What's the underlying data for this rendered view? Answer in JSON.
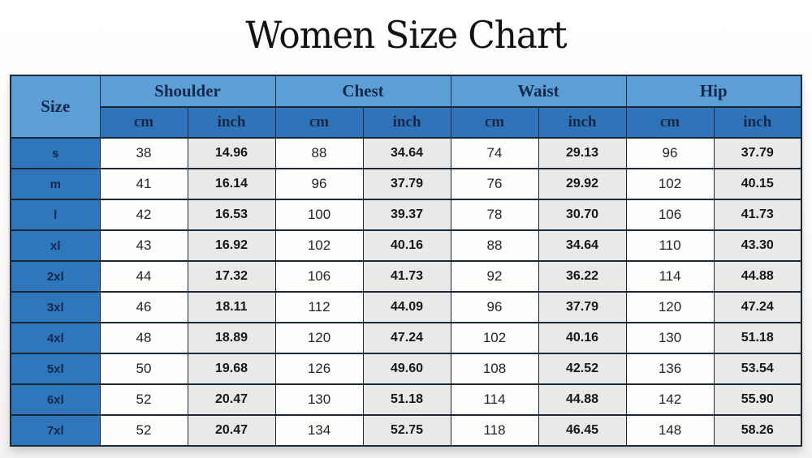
{
  "title": "Women Size Chart",
  "colors": {
    "header_light_blue": "#5b9fd6",
    "header_dark_blue": "#2f74b8",
    "size_cell_blue": "#2f77bc",
    "inch_cell_gray": "#e9e9e9",
    "header_text_navy": "#13294b"
  },
  "table": {
    "size_header": "Size",
    "groups": [
      {
        "label": "Shoulder"
      },
      {
        "label": "Chest"
      },
      {
        "label": "Waist"
      },
      {
        "label": "Hip"
      }
    ],
    "units": [
      "cm",
      "inch"
    ],
    "rows": [
      {
        "size": "s",
        "values": [
          "38",
          "14.96",
          "88",
          "34.64",
          "74",
          "29.13",
          "96",
          "37.79"
        ]
      },
      {
        "size": "m",
        "values": [
          "41",
          "16.14",
          "96",
          "37.79",
          "76",
          "29.92",
          "102",
          "40.15"
        ]
      },
      {
        "size": "l",
        "values": [
          "42",
          "16.53",
          "100",
          "39.37",
          "78",
          "30.70",
          "106",
          "41.73"
        ]
      },
      {
        "size": "xl",
        "values": [
          "43",
          "16.92",
          "102",
          "40.16",
          "88",
          "34.64",
          "110",
          "43.30"
        ]
      },
      {
        "size": "2xl",
        "values": [
          "44",
          "17.32",
          "106",
          "41.73",
          "92",
          "36.22",
          "114",
          "44.88"
        ]
      },
      {
        "size": "3xl",
        "values": [
          "46",
          "18.11",
          "112",
          "44.09",
          "96",
          "37.79",
          "120",
          "47.24"
        ]
      },
      {
        "size": "4xl",
        "values": [
          "48",
          "18.89",
          "120",
          "47.24",
          "102",
          "40.16",
          "130",
          "51.18"
        ]
      },
      {
        "size": "5xl",
        "values": [
          "50",
          "19.68",
          "126",
          "49.60",
          "108",
          "42.52",
          "136",
          "53.54"
        ]
      },
      {
        "size": "6xl",
        "values": [
          "52",
          "20.47",
          "130",
          "51.18",
          "114",
          "44.88",
          "142",
          "55.90"
        ]
      },
      {
        "size": "7xl",
        "values": [
          "52",
          "20.47",
          "134",
          "52.75",
          "118",
          "46.45",
          "148",
          "58.26"
        ]
      }
    ]
  },
  "chart_data": {
    "type": "table",
    "title": "Women Size Chart",
    "columns": [
      "Size",
      "Shoulder cm",
      "Shoulder inch",
      "Chest cm",
      "Chest inch",
      "Waist cm",
      "Waist inch",
      "Hip cm",
      "Hip inch"
    ],
    "rows": [
      [
        "s",
        38,
        14.96,
        88,
        34.64,
        74,
        29.13,
        96,
        37.79
      ],
      [
        "m",
        41,
        16.14,
        96,
        37.79,
        76,
        29.92,
        102,
        40.15
      ],
      [
        "l",
        42,
        16.53,
        100,
        39.37,
        78,
        30.7,
        106,
        41.73
      ],
      [
        "xl",
        43,
        16.92,
        102,
        40.16,
        88,
        34.64,
        110,
        43.3
      ],
      [
        "2xl",
        44,
        17.32,
        106,
        41.73,
        92,
        36.22,
        114,
        44.88
      ],
      [
        "3xl",
        46,
        18.11,
        112,
        44.09,
        96,
        37.79,
        120,
        47.24
      ],
      [
        "4xl",
        48,
        18.89,
        120,
        47.24,
        102,
        40.16,
        130,
        51.18
      ],
      [
        "5xl",
        50,
        19.68,
        126,
        49.6,
        108,
        42.52,
        136,
        53.54
      ],
      [
        "6xl",
        52,
        20.47,
        130,
        51.18,
        114,
        44.88,
        142,
        55.9
      ],
      [
        "7xl",
        52,
        20.47,
        134,
        52.75,
        118,
        46.45,
        148,
        58.26
      ]
    ]
  }
}
